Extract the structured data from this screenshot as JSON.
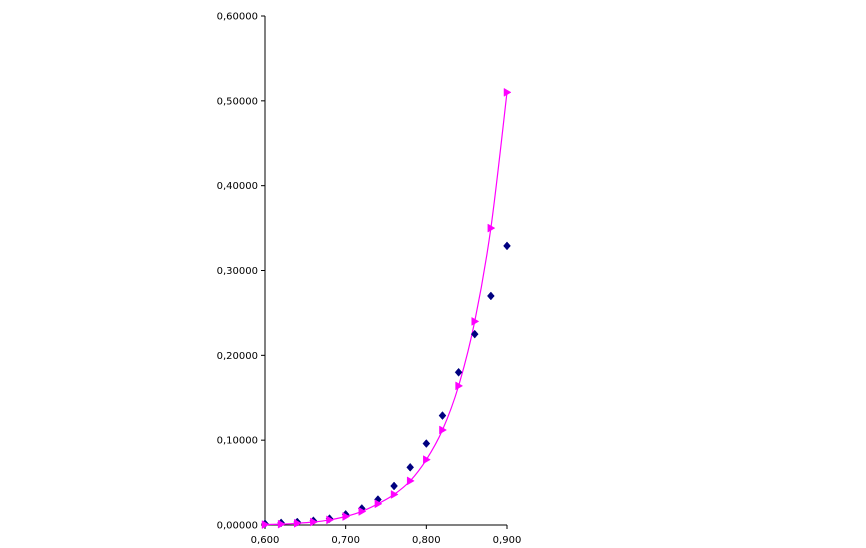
{
  "chart_data": {
    "type": "scatter",
    "xlim": [
      0.6,
      0.9
    ],
    "ylim": [
      0,
      0.6
    ],
    "x_ticks": [
      {
        "value": 0.6,
        "label": "0,600"
      },
      {
        "value": 0.7,
        "label": "0,700"
      },
      {
        "value": 0.8,
        "label": "0,800"
      },
      {
        "value": 0.9,
        "label": "0,900"
      }
    ],
    "y_ticks": [
      {
        "value": 0.0,
        "label": "0,00000"
      },
      {
        "value": 0.1,
        "label": "0,10000"
      },
      {
        "value": 0.2,
        "label": "0,20000"
      },
      {
        "value": 0.3,
        "label": "0,30000"
      },
      {
        "value": 0.4,
        "label": "0,40000"
      },
      {
        "value": 0.5,
        "label": "0,50000"
      },
      {
        "value": 0.6,
        "label": "0,60000"
      }
    ],
    "grid": false,
    "legend": "none",
    "series": [
      {
        "marker": "diamond",
        "color": "#000080",
        "line": false,
        "x": [
          0.6,
          0.62,
          0.64,
          0.66,
          0.68,
          0.7,
          0.72,
          0.74,
          0.76,
          0.78,
          0.8,
          0.82,
          0.84,
          0.86,
          0.88,
          0.9
        ],
        "y": [
          0.0015,
          0.0025,
          0.0035,
          0.005,
          0.0075,
          0.0125,
          0.0195,
          0.03,
          0.046,
          0.068,
          0.096,
          0.129,
          0.18,
          0.225,
          0.27,
          0.329
        ]
      },
      {
        "marker": "triangle-right",
        "color": "#ff00ff",
        "line": true,
        "x": [
          0.6,
          0.62,
          0.64,
          0.66,
          0.68,
          0.7,
          0.72,
          0.74,
          0.76,
          0.78,
          0.8,
          0.82,
          0.84,
          0.86,
          0.88,
          0.9
        ],
        "y": [
          0.0005,
          0.001,
          0.002,
          0.0035,
          0.006,
          0.01,
          0.016,
          0.025,
          0.036,
          0.052,
          0.077,
          0.112,
          0.164,
          0.24,
          0.35,
          0.51
        ]
      }
    ]
  }
}
